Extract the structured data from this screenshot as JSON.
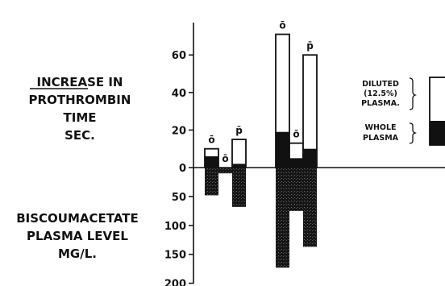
{
  "labels": {
    "top": [
      "INCREASE IN",
      "PROTHROMBIN",
      "TIME",
      "SEC."
    ],
    "top_underlined_word": "INCREASE",
    "bottom": [
      "BISCOUMACETATE",
      "PLASMA LEVEL",
      "MG/L."
    ]
  },
  "legend": {
    "diluted": [
      "DILUTED",
      "(12.5%)",
      "PLASMA."
    ],
    "whole": [
      "WHOLE",
      "PLASMA"
    ]
  },
  "chart_data": {
    "type": "bar",
    "upper_axis": {
      "label": "INCREASE IN PROTHROMBIN TIME SEC.",
      "ticks": [
        0,
        20,
        40,
        60
      ],
      "range": [
        0,
        70
      ]
    },
    "lower_axis": {
      "label": "BISCOUMACETATE PLASMA LEVEL MG/L.",
      "ticks": [
        0,
        50,
        100,
        150,
        200
      ],
      "range": [
        0,
        200
      ],
      "direction": "downward"
    },
    "groups": [
      {
        "bars": [
          {
            "mark": "ō",
            "diluted_plasma": 10,
            "whole_plasma": 6,
            "plasma_level": 48
          },
          {
            "mark": "ō",
            "diluted_plasma": 0,
            "whole_plasma": 0,
            "plasma_level": 10
          },
          {
            "mark": "p̄",
            "diluted_plasma": 15,
            "whole_plasma": 2,
            "plasma_level": 68
          }
        ]
      },
      {
        "bars": [
          {
            "mark": "ō",
            "diluted_plasma": 71,
            "whole_plasma": 19,
            "plasma_level": 173
          },
          {
            "mark": "ō",
            "diluted_plasma": 13,
            "whole_plasma": 5,
            "plasma_level": 75
          },
          {
            "mark": "p̄",
            "diluted_plasma": 60,
            "whole_plasma": 10,
            "plasma_level": 137
          }
        ]
      }
    ]
  }
}
